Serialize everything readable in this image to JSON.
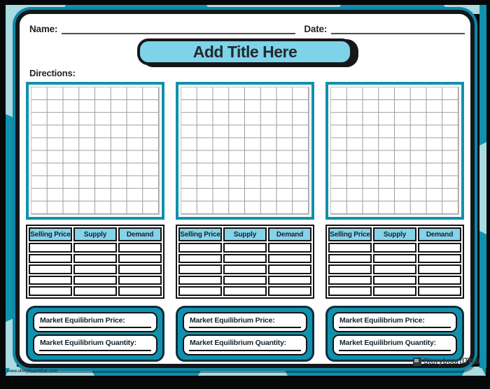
{
  "header": {
    "name_label": "Name:",
    "date_label": "Date:"
  },
  "title_banner": {
    "text": "Add Title Here"
  },
  "directions": {
    "label": "Directions:"
  },
  "worksheet": {
    "columns_count": 3,
    "table": {
      "headers": [
        "Selling Price",
        "Supply",
        "Demand"
      ],
      "body_rows": 5,
      "body_cols": 3
    },
    "equilibrium": {
      "price_label": "Market Equilibrium Price:",
      "quantity_label": "Market Equilibrium Quantity:"
    }
  },
  "footer": {
    "watermark": "www.storyboardthat.com",
    "brand": "StoryboardThat"
  },
  "colors": {
    "accent_teal": "#1191ad",
    "light_teal": "#a9dbe0",
    "page_outline_teal": "#0d88a6",
    "banner_blue": "#7ed3e9",
    "table_header_blue": "#85d3e8",
    "ink": "#1b2228",
    "frame_black": "#060708"
  }
}
